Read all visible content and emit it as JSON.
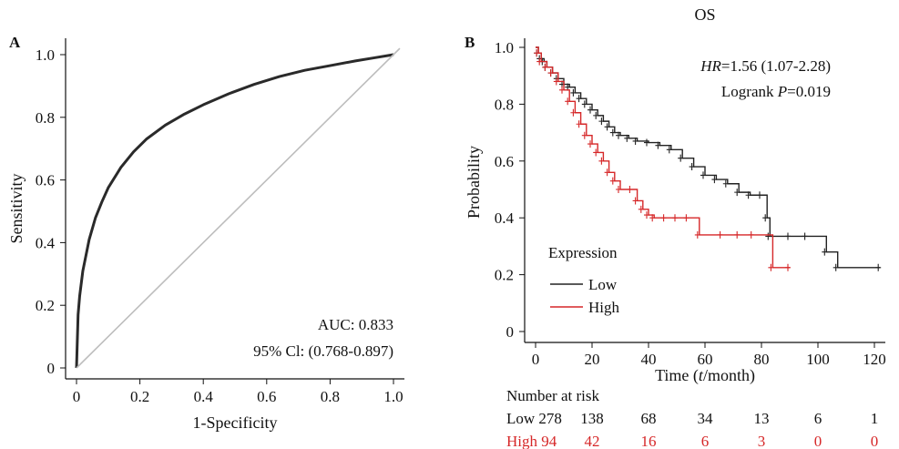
{
  "chart_data": [
    {
      "panel": "A",
      "type": "line",
      "xlabel": "1-Specificity",
      "ylabel": "Sensitivity",
      "xlim": [
        0,
        1.0
      ],
      "ylim": [
        0,
        1.0
      ],
      "xticks": [
        "0",
        "0.2",
        "0.4",
        "0.6",
        "0.8",
        "1.0"
      ],
      "yticks": [
        "0",
        "0.2",
        "0.4",
        "0.6",
        "0.8",
        "1.0"
      ],
      "series": [
        {
          "color": "#2a2a2a",
          "x": [
            0,
            0.005,
            0.01,
            0.02,
            0.04,
            0.06,
            0.08,
            0.1,
            0.14,
            0.18,
            0.22,
            0.28,
            0.34,
            0.4,
            0.48,
            0.56,
            0.64,
            0.72,
            0.8,
            0.88,
            0.94,
            1.0
          ],
          "y": [
            0,
            0.17,
            0.23,
            0.31,
            0.41,
            0.48,
            0.53,
            0.575,
            0.64,
            0.69,
            0.73,
            0.775,
            0.81,
            0.84,
            0.875,
            0.905,
            0.93,
            0.95,
            0.965,
            0.98,
            0.99,
            1.0
          ]
        },
        {
          "color": "#bdbdbd",
          "x": [
            0,
            1.02
          ],
          "y": [
            0,
            1.02
          ]
        }
      ],
      "annotations": [
        "AUC: 0.833",
        "95% Cl: (0.768-0.897)"
      ]
    },
    {
      "panel": "B",
      "type": "line",
      "title": "OS",
      "xlabel": "Time (t/month)",
      "ylabel": "Probability",
      "xlim": [
        0,
        125
      ],
      "ylim": [
        0,
        1.0
      ],
      "xticks": [
        "0",
        "20",
        "40",
        "60",
        "80",
        "100",
        "120"
      ],
      "yticks": [
        "0",
        "0.2",
        "0.4",
        "0.6",
        "0.8",
        "1.0"
      ],
      "legend_title": "Expression",
      "legend_position": "bottom-left",
      "hr_prefix": "HR",
      "hr_value": "=1.56 (1.07-2.28)",
      "logrank_prefix": "Logrank ",
      "p_label": "P",
      "p_value": "=0.019",
      "series": [
        {
          "name": "Low",
          "color": "#222222",
          "x": [
            0,
            1,
            2,
            3,
            4,
            6,
            8,
            10,
            12,
            14,
            16,
            18,
            20,
            22,
            24,
            26,
            28,
            30,
            33,
            36,
            40,
            44,
            48,
            52,
            56,
            60,
            64,
            68,
            72,
            76,
            80,
            82,
            83,
            90,
            96,
            103,
            107,
            122
          ],
          "y": [
            1.0,
            0.98,
            0.96,
            0.95,
            0.93,
            0.91,
            0.89,
            0.87,
            0.86,
            0.84,
            0.82,
            0.8,
            0.78,
            0.76,
            0.74,
            0.72,
            0.7,
            0.69,
            0.68,
            0.67,
            0.665,
            0.655,
            0.64,
            0.61,
            0.58,
            0.55,
            0.535,
            0.52,
            0.49,
            0.48,
            0.48,
            0.4,
            0.335,
            0.335,
            0.335,
            0.28,
            0.225,
            0.225
          ]
        },
        {
          "name": "High",
          "color": "#d62728",
          "x": [
            0,
            1,
            2,
            4,
            6,
            8,
            10,
            12,
            14,
            16,
            18,
            20,
            22,
            24,
            26,
            28,
            30,
            34,
            36,
            38,
            40,
            42,
            46,
            50,
            54,
            58,
            66,
            72,
            77,
            84,
            90
          ],
          "y": [
            1.0,
            0.98,
            0.95,
            0.93,
            0.91,
            0.88,
            0.85,
            0.81,
            0.77,
            0.73,
            0.69,
            0.66,
            0.63,
            0.6,
            0.56,
            0.53,
            0.5,
            0.5,
            0.46,
            0.43,
            0.41,
            0.4,
            0.4,
            0.4,
            0.4,
            0.34,
            0.34,
            0.34,
            0.34,
            0.225,
            0.225
          ]
        }
      ],
      "risk_table": {
        "title": "Number at risk",
        "time_points": [
          0,
          20,
          40,
          60,
          80,
          100,
          120
        ],
        "rows": [
          {
            "label": "Low 278",
            "color": "#111111",
            "values": [
              "138",
              "68",
              "34",
              "13",
              "6",
              "1"
            ]
          },
          {
            "label": "High 94",
            "color": "#d62728",
            "values": [
              "42",
              "16",
              "6",
              "3",
              "0",
              "0"
            ]
          }
        ]
      }
    }
  ]
}
